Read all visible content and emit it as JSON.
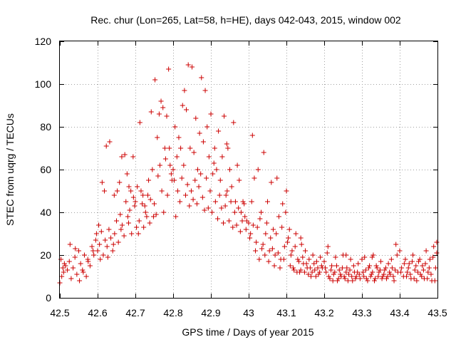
{
  "chart_data": {
    "type": "scatter",
    "title": "Rec. chur (Lon=265, Lat=58, h=HE), days 042-043, 2015, window 002",
    "xlabel": "GPS time / Days of year 2015",
    "ylabel": "STEC from uqrg / TECUs",
    "xlim": [
      42.5,
      43.5
    ],
    "ylim": [
      0,
      120
    ],
    "xticks": [
      42.5,
      42.6,
      42.7,
      42.8,
      42.9,
      43.0,
      43.1,
      43.2,
      43.3,
      43.4,
      43.5
    ],
    "xtick_labels": [
      "42.5",
      "42.6",
      "42.7",
      "42.8",
      "42.9",
      "43",
      "43.1",
      "43.2",
      "43.3",
      "43.4",
      "43.5"
    ],
    "yticks": [
      0,
      20,
      40,
      60,
      80,
      100,
      120
    ],
    "ytick_labels": [
      "0",
      "20",
      "40",
      "60",
      "80",
      "100",
      "120"
    ],
    "grid": true,
    "legend": "none",
    "marker": "plus",
    "color": "#cc0000",
    "points": [
      [
        42.5,
        7
      ],
      [
        42.505,
        10
      ],
      [
        42.51,
        12
      ],
      [
        42.515,
        15
      ],
      [
        42.52,
        13
      ],
      [
        42.525,
        17
      ],
      [
        42.53,
        9
      ],
      [
        42.535,
        14
      ],
      [
        42.54,
        19
      ],
      [
        42.545,
        11
      ],
      [
        42.55,
        22
      ],
      [
        42.555,
        16
      ],
      [
        42.56,
        13
      ],
      [
        42.565,
        20
      ],
      [
        42.57,
        10
      ],
      [
        42.575,
        17
      ],
      [
        42.58,
        15
      ],
      [
        42.585,
        24
      ],
      [
        42.59,
        20
      ],
      [
        42.595,
        27
      ],
      [
        42.503,
        18
      ],
      [
        42.512,
        16
      ],
      [
        42.527,
        25
      ],
      [
        42.541,
        23
      ],
      [
        42.552,
        8
      ],
      [
        42.562,
        12
      ],
      [
        42.574,
        18
      ],
      [
        42.588,
        22
      ],
      [
        42.597,
        30
      ],
      [
        42.508,
        14
      ],
      [
        42.6,
        22
      ],
      [
        42.605,
        25
      ],
      [
        42.61,
        31
      ],
      [
        42.615,
        20
      ],
      [
        42.62,
        27
      ],
      [
        42.625,
        24
      ],
      [
        42.63,
        32
      ],
      [
        42.635,
        28
      ],
      [
        42.64,
        22
      ],
      [
        42.645,
        30
      ],
      [
        42.65,
        36
      ],
      [
        42.655,
        26
      ],
      [
        42.66,
        39
      ],
      [
        42.665,
        34
      ],
      [
        42.67,
        29
      ],
      [
        42.675,
        45
      ],
      [
        42.68,
        38
      ],
      [
        42.685,
        41
      ],
      [
        42.69,
        30
      ],
      [
        42.695,
        47
      ],
      [
        42.603,
        34
      ],
      [
        42.612,
        54
      ],
      [
        42.618,
        50
      ],
      [
        42.623,
        71
      ],
      [
        42.632,
        73
      ],
      [
        42.644,
        48
      ],
      [
        42.652,
        50
      ],
      [
        42.658,
        54
      ],
      [
        42.664,
        66
      ],
      [
        42.672,
        67
      ],
      [
        42.678,
        58
      ],
      [
        42.683,
        52
      ],
      [
        42.688,
        50
      ],
      [
        42.694,
        66
      ],
      [
        42.607,
        18
      ],
      [
        42.627,
        19
      ],
      [
        42.642,
        25
      ],
      [
        42.662,
        32
      ],
      [
        42.682,
        35
      ],
      [
        42.698,
        43
      ],
      [
        42.7,
        45
      ],
      [
        42.705,
        52
      ],
      [
        42.71,
        36
      ],
      [
        42.715,
        50
      ],
      [
        42.72,
        48
      ],
      [
        42.725,
        43
      ],
      [
        42.73,
        38
      ],
      [
        42.735,
        55
      ],
      [
        42.74,
        46
      ],
      [
        42.745,
        60
      ],
      [
        42.75,
        44
      ],
      [
        42.755,
        39
      ],
      [
        42.76,
        57
      ],
      [
        42.765,
        62
      ],
      [
        42.77,
        50
      ],
      [
        42.775,
        40
      ],
      [
        42.78,
        65
      ],
      [
        42.785,
        48
      ],
      [
        42.79,
        70
      ],
      [
        42.795,
        58
      ],
      [
        42.703,
        33
      ],
      [
        42.712,
        82
      ],
      [
        42.718,
        44
      ],
      [
        42.727,
        40
      ],
      [
        42.733,
        48
      ],
      [
        42.742,
        87
      ],
      [
        42.752,
        102
      ],
      [
        42.758,
        75
      ],
      [
        42.763,
        86
      ],
      [
        42.768,
        92
      ],
      [
        42.773,
        89
      ],
      [
        42.778,
        70
      ],
      [
        42.783,
        85
      ],
      [
        42.788,
        107
      ],
      [
        42.792,
        62
      ],
      [
        42.797,
        55
      ],
      [
        42.708,
        30
      ],
      [
        42.722,
        33
      ],
      [
        42.738,
        35
      ],
      [
        42.748,
        38
      ],
      [
        42.8,
        60
      ],
      [
        42.805,
        80
      ],
      [
        42.81,
        66
      ],
      [
        42.815,
        75
      ],
      [
        42.82,
        70
      ],
      [
        42.825,
        90
      ],
      [
        42.83,
        97
      ],
      [
        42.835,
        88
      ],
      [
        42.84,
        109
      ],
      [
        42.845,
        70
      ],
      [
        42.85,
        108
      ],
      [
        42.855,
        68
      ],
      [
        42.86,
        84
      ],
      [
        42.865,
        60
      ],
      [
        42.87,
        77
      ],
      [
        42.875,
        103
      ],
      [
        42.88,
        73
      ],
      [
        42.885,
        97
      ],
      [
        42.89,
        80
      ],
      [
        42.895,
        66
      ],
      [
        42.803,
        55
      ],
      [
        42.812,
        50
      ],
      [
        42.818,
        45
      ],
      [
        42.823,
        56
      ],
      [
        42.828,
        62
      ],
      [
        42.833,
        48
      ],
      [
        42.838,
        53
      ],
      [
        42.843,
        43
      ],
      [
        42.848,
        50
      ],
      [
        42.853,
        46
      ],
      [
        42.858,
        55
      ],
      [
        42.863,
        44
      ],
      [
        42.868,
        52
      ],
      [
        42.873,
        58
      ],
      [
        42.878,
        47
      ],
      [
        42.883,
        41
      ],
      [
        42.888,
        56
      ],
      [
        42.893,
        42
      ],
      [
        42.898,
        50
      ],
      [
        42.807,
        38
      ],
      [
        42.9,
        86
      ],
      [
        42.905,
        58
      ],
      [
        42.91,
        70
      ],
      [
        42.915,
        60
      ],
      [
        42.92,
        78
      ],
      [
        42.925,
        55
      ],
      [
        42.93,
        66
      ],
      [
        42.935,
        85
      ],
      [
        42.94,
        48
      ],
      [
        42.945,
        70
      ],
      [
        42.95,
        60
      ],
      [
        42.955,
        52
      ],
      [
        42.96,
        82
      ],
      [
        42.965,
        45
      ],
      [
        42.97,
        62
      ],
      [
        42.975,
        55
      ],
      [
        42.98,
        40
      ],
      [
        42.985,
        45
      ],
      [
        42.99,
        38
      ],
      [
        42.995,
        36
      ],
      [
        42.903,
        40
      ],
      [
        42.912,
        45
      ],
      [
        42.918,
        37
      ],
      [
        42.923,
        48
      ],
      [
        42.928,
        42
      ],
      [
        42.933,
        35
      ],
      [
        42.938,
        43
      ],
      [
        42.943,
        50
      ],
      [
        42.948,
        36
      ],
      [
        42.953,
        45
      ],
      [
        42.958,
        33
      ],
      [
        42.963,
        40
      ],
      [
        42.968,
        34
      ],
      [
        42.973,
        42
      ],
      [
        42.978,
        31
      ],
      [
        42.983,
        36
      ],
      [
        42.988,
        44
      ],
      [
        42.993,
        32
      ],
      [
        42.908,
        63
      ],
      [
        42.942,
        72
      ],
      [
        43.0,
        35
      ],
      [
        43.005,
        30
      ],
      [
        43.01,
        76
      ],
      [
        43.015,
        56
      ],
      [
        43.02,
        26
      ],
      [
        43.025,
        60
      ],
      [
        43.03,
        37
      ],
      [
        43.035,
        23
      ],
      [
        43.04,
        68
      ],
      [
        43.045,
        30
      ],
      [
        43.05,
        45
      ],
      [
        43.055,
        22
      ],
      [
        43.06,
        54
      ],
      [
        43.065,
        32
      ],
      [
        43.07,
        20
      ],
      [
        43.075,
        56
      ],
      [
        43.08,
        38
      ],
      [
        43.085,
        18
      ],
      [
        43.09,
        44
      ],
      [
        43.095,
        24
      ],
      [
        43.003,
        28
      ],
      [
        43.012,
        34
      ],
      [
        43.018,
        22
      ],
      [
        43.023,
        33
      ],
      [
        43.028,
        18
      ],
      [
        43.033,
        40
      ],
      [
        43.038,
        25
      ],
      [
        43.043,
        20
      ],
      [
        43.048,
        35
      ],
      [
        43.053,
        17
      ],
      [
        43.058,
        28
      ],
      [
        43.063,
        23
      ],
      [
        43.068,
        15
      ],
      [
        43.073,
        30
      ],
      [
        43.078,
        21
      ],
      [
        43.083,
        14
      ],
      [
        43.088,
        33
      ],
      [
        43.093,
        18
      ],
      [
        43.098,
        40
      ],
      [
        43.008,
        45
      ],
      [
        43.1,
        50
      ],
      [
        43.105,
        28
      ],
      [
        43.11,
        15
      ],
      [
        43.115,
        22
      ],
      [
        43.12,
        13
      ],
      [
        43.125,
        30
      ],
      [
        43.13,
        18
      ],
      [
        43.135,
        12
      ],
      [
        43.14,
        25
      ],
      [
        43.145,
        16
      ],
      [
        43.15,
        22
      ],
      [
        43.155,
        14
      ],
      [
        43.16,
        18
      ],
      [
        43.165,
        10
      ],
      [
        43.17,
        20
      ],
      [
        43.175,
        13
      ],
      [
        43.18,
        17
      ],
      [
        43.185,
        11
      ],
      [
        43.19,
        19
      ],
      [
        43.195,
        14
      ],
      [
        43.103,
        26
      ],
      [
        43.112,
        20
      ],
      [
        43.118,
        14
      ],
      [
        43.123,
        24
      ],
      [
        43.128,
        12
      ],
      [
        43.133,
        17
      ],
      [
        43.138,
        13
      ],
      [
        43.143,
        19
      ],
      [
        43.148,
        12
      ],
      [
        43.153,
        16
      ],
      [
        43.158,
        11
      ],
      [
        43.163,
        14
      ],
      [
        43.168,
        12
      ],
      [
        43.173,
        16
      ],
      [
        43.178,
        10
      ],
      [
        43.183,
        14
      ],
      [
        43.188,
        12
      ],
      [
        43.193,
        15
      ],
      [
        43.108,
        32
      ],
      [
        43.138,
        28
      ],
      [
        43.2,
        17
      ],
      [
        43.205,
        12
      ],
      [
        43.21,
        24
      ],
      [
        43.215,
        9
      ],
      [
        43.22,
        15
      ],
      [
        43.225,
        11
      ],
      [
        43.23,
        19
      ],
      [
        43.235,
        8
      ],
      [
        43.24,
        13
      ],
      [
        43.245,
        10
      ],
      [
        43.25,
        20
      ],
      [
        43.255,
        9
      ],
      [
        43.26,
        14
      ],
      [
        43.265,
        11
      ],
      [
        43.27,
        18
      ],
      [
        43.275,
        8
      ],
      [
        43.28,
        12
      ],
      [
        43.285,
        10
      ],
      [
        43.29,
        16
      ],
      [
        43.295,
        9
      ],
      [
        43.203,
        14
      ],
      [
        43.212,
        10
      ],
      [
        43.218,
        13
      ],
      [
        43.223,
        8
      ],
      [
        43.228,
        12
      ],
      [
        43.233,
        15
      ],
      [
        43.238,
        9
      ],
      [
        43.243,
        11
      ],
      [
        43.248,
        14
      ],
      [
        43.253,
        10
      ],
      [
        43.258,
        12
      ],
      [
        43.263,
        8
      ],
      [
        43.268,
        13
      ],
      [
        43.273,
        10
      ],
      [
        43.278,
        15
      ],
      [
        43.283,
        9
      ],
      [
        43.288,
        12
      ],
      [
        43.293,
        11
      ],
      [
        43.208,
        21
      ],
      [
        43.258,
        20
      ],
      [
        43.3,
        18
      ],
      [
        43.305,
        10
      ],
      [
        43.31,
        13
      ],
      [
        43.315,
        8
      ],
      [
        43.32,
        15
      ],
      [
        43.325,
        11
      ],
      [
        43.33,
        20
      ],
      [
        43.335,
        9
      ],
      [
        43.34,
        14
      ],
      [
        43.345,
        12
      ],
      [
        43.35,
        17
      ],
      [
        43.355,
        10
      ],
      [
        43.36,
        13
      ],
      [
        43.365,
        9
      ],
      [
        43.37,
        16
      ],
      [
        43.375,
        11
      ],
      [
        43.38,
        14
      ],
      [
        43.385,
        8
      ],
      [
        43.39,
        25
      ],
      [
        43.395,
        12
      ],
      [
        43.303,
        12
      ],
      [
        43.312,
        9
      ],
      [
        43.318,
        14
      ],
      [
        43.323,
        10
      ],
      [
        43.328,
        12
      ],
      [
        43.333,
        8
      ],
      [
        43.338,
        15
      ],
      [
        43.343,
        10
      ],
      [
        43.348,
        13
      ],
      [
        43.353,
        9
      ],
      [
        43.358,
        11
      ],
      [
        43.363,
        14
      ],
      [
        43.368,
        10
      ],
      [
        43.373,
        12
      ],
      [
        43.378,
        18
      ],
      [
        43.383,
        10
      ],
      [
        43.388,
        13
      ],
      [
        43.393,
        20
      ],
      [
        43.307,
        19
      ],
      [
        43.327,
        19
      ],
      [
        43.4,
        22
      ],
      [
        43.405,
        14
      ],
      [
        43.41,
        10
      ],
      [
        43.415,
        18
      ],
      [
        43.42,
        12
      ],
      [
        43.425,
        16
      ],
      [
        43.43,
        9
      ],
      [
        43.435,
        20
      ],
      [
        43.44,
        13
      ],
      [
        43.445,
        8
      ],
      [
        43.45,
        17
      ],
      [
        43.455,
        11
      ],
      [
        43.46,
        15
      ],
      [
        43.465,
        9
      ],
      [
        43.47,
        22
      ],
      [
        43.475,
        12
      ],
      [
        43.48,
        18
      ],
      [
        43.485,
        8
      ],
      [
        43.49,
        24
      ],
      [
        43.495,
        14
      ],
      [
        43.403,
        12
      ],
      [
        43.412,
        16
      ],
      [
        43.418,
        10
      ],
      [
        43.423,
        14
      ],
      [
        43.428,
        11
      ],
      [
        43.433,
        17
      ],
      [
        43.438,
        9
      ],
      [
        43.443,
        15
      ],
      [
        43.448,
        12
      ],
      [
        43.453,
        18
      ],
      [
        43.458,
        10
      ],
      [
        43.463,
        13
      ],
      [
        43.468,
        16
      ],
      [
        43.473,
        9
      ],
      [
        43.478,
        14
      ],
      [
        43.483,
        11
      ],
      [
        43.488,
        19
      ],
      [
        43.493,
        8
      ],
      [
        43.498,
        26
      ],
      [
        43.498,
        21
      ]
    ]
  }
}
